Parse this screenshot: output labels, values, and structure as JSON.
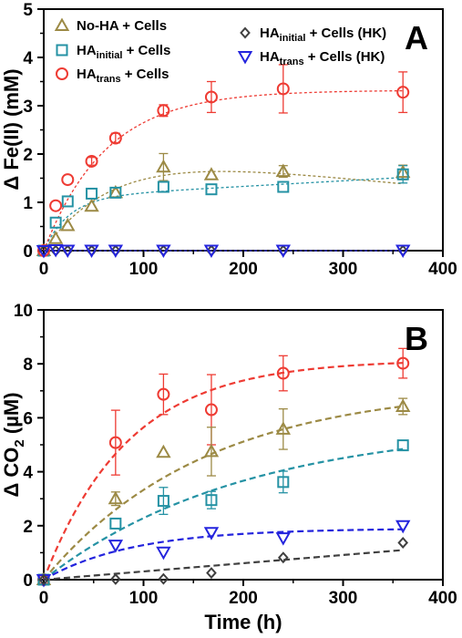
{
  "colors": {
    "noha": "#9c8a45",
    "hainit": "#2592a4",
    "hatrans": "#ee3b33",
    "hk_init": "#404040",
    "hk_trans": "#2424dd"
  },
  "chart_data": [
    {
      "type": "scatter",
      "panel_label": "A",
      "ylabel": "Δ Fe(II) (mM)",
      "xlabel": "",
      "xlim": [
        0,
        400
      ],
      "ylim": [
        0,
        5
      ],
      "xticks": [
        "0",
        "100",
        "200",
        "300",
        "400"
      ],
      "yticks": [
        "0",
        "1",
        "2",
        "3",
        "4",
        "5"
      ],
      "grid": false,
      "legend_placement": "top-left and top-center, inside plot",
      "series": [
        {
          "id": "noha",
          "legend_main": "No-HA + Cells",
          "legend_sub": "",
          "legend_tail": "",
          "marker": "triangle-up",
          "color": "#9c8a45",
          "x": [
            0,
            12,
            24,
            48,
            72,
            120,
            168,
            240,
            360
          ],
          "y": [
            0,
            0.25,
            0.52,
            0.92,
            1.2,
            1.73,
            1.57,
            1.64,
            1.62
          ],
          "err": [
            0,
            0,
            0,
            0,
            0,
            0.28,
            0,
            0.12,
            0.15
          ],
          "fit": {
            "kind": "peak",
            "A": 2.4,
            "k": 0.0125,
            "c": 0.0015
          }
        },
        {
          "id": "hainit",
          "legend_main": "HA",
          "legend_sub": "initial",
          "legend_tail": " + Cells",
          "marker": "square",
          "color": "#2592a4",
          "x": [
            0,
            12,
            24,
            48,
            72,
            120,
            168,
            240,
            360
          ],
          "y": [
            0,
            0.58,
            1.02,
            1.18,
            1.2,
            1.32,
            1.27,
            1.32,
            1.58
          ],
          "err": [
            0,
            0,
            0,
            0,
            0,
            0,
            0,
            0,
            0.18
          ],
          "fit": {
            "kind": "exp_linear",
            "A": 1.1,
            "k": 0.04,
            "b": 0.00115
          }
        },
        {
          "id": "hatrans",
          "legend_main": "HA",
          "legend_sub": "trans",
          "legend_tail": " + Cells",
          "marker": "circle",
          "color": "#ee3b33",
          "x": [
            0,
            12,
            24,
            48,
            72,
            120,
            168,
            240,
            360
          ],
          "y": [
            0,
            0.93,
            1.47,
            1.85,
            2.33,
            2.9,
            3.18,
            3.35,
            3.28
          ],
          "err": [
            0,
            0,
            0,
            0.08,
            0.1,
            0.12,
            0.32,
            0.5,
            0.42
          ],
          "fit": {
            "kind": "exp",
            "A": 3.32,
            "k": 0.016
          }
        },
        {
          "id": "hk_init",
          "legend_main": "HA",
          "legend_sub": "initial",
          "legend_tail": " + Cells (HK)",
          "marker": "diamond",
          "color": "#404040",
          "x": [
            0,
            12,
            24,
            48,
            72,
            120,
            168,
            240,
            360
          ],
          "y": [
            0,
            0,
            0,
            0,
            0,
            0,
            0,
            0,
            0
          ],
          "err": [
            0,
            0,
            0,
            0,
            0,
            0,
            0,
            0,
            0
          ],
          "fit": {
            "kind": "zero"
          }
        },
        {
          "id": "hk_trans",
          "legend_main": "HA",
          "legend_sub": "trans",
          "legend_tail": " + Cells (HK)",
          "marker": "triangle-down",
          "color": "#2424dd",
          "x": [
            0,
            12,
            24,
            48,
            72,
            120,
            168,
            240,
            360
          ],
          "y": [
            0,
            0.02,
            0.01,
            0.01,
            0.01,
            0.01,
            0.01,
            0.01,
            0.01
          ],
          "err": [
            0,
            0,
            0,
            0,
            0,
            0,
            0,
            0,
            0
          ],
          "fit": {
            "kind": "zero"
          }
        }
      ]
    },
    {
      "type": "scatter",
      "panel_label": "B",
      "ylabel_main": "Δ CO",
      "ylabel_sub": "2",
      "ylabel_tail": " (µM)",
      "xlabel": "Time (h)",
      "xlim": [
        0,
        400
      ],
      "ylim": [
        0,
        10
      ],
      "xticks": [
        "0",
        "100",
        "200",
        "300",
        "400"
      ],
      "yticks": [
        "0",
        "2",
        "4",
        "6",
        "8",
        "10"
      ],
      "grid": false,
      "series": [
        {
          "id": "hatrans",
          "marker": "circle",
          "color": "#ee3b33",
          "x": [
            0,
            72,
            120,
            168,
            240,
            360
          ],
          "y": [
            0,
            5.08,
            6.87,
            6.3,
            7.65,
            8.02
          ],
          "err": [
            0,
            1.2,
            0.75,
            1.3,
            0.65,
            0.55
          ],
          "fit": {
            "kind": "exp",
            "A": 8.15,
            "k": 0.0118
          }
        },
        {
          "id": "noha",
          "marker": "triangle-up",
          "color": "#9c8a45",
          "x": [
            0,
            72,
            120,
            168,
            240,
            360
          ],
          "y": [
            0,
            3.0,
            4.72,
            4.75,
            5.58,
            6.42
          ],
          "err": [
            0,
            0.25,
            0,
            0.9,
            0.75,
            0.3
          ],
          "fit": {
            "kind": "exp",
            "A": 7.2,
            "k": 0.0062
          }
        },
        {
          "id": "hainit",
          "marker": "square",
          "color": "#2592a4",
          "x": [
            0,
            72,
            120,
            168,
            240,
            360
          ],
          "y": [
            0,
            2.08,
            2.92,
            2.95,
            3.62,
            4.98
          ],
          "err": [
            0,
            0,
            0.5,
            0.32,
            0.4,
            0
          ],
          "fit": {
            "kind": "exp",
            "A": 5.8,
            "k": 0.005
          }
        },
        {
          "id": "hk_trans",
          "marker": "triangle-down",
          "color": "#2424dd",
          "x": [
            0,
            72,
            120,
            168,
            240,
            360
          ],
          "y": [
            0,
            1.28,
            1.02,
            1.75,
            1.55,
            2.0
          ],
          "err": [
            0,
            0,
            0,
            0,
            0,
            0
          ],
          "fit": {
            "kind": "exp",
            "A": 1.9,
            "k": 0.0112
          }
        },
        {
          "id": "hk_init",
          "marker": "diamond",
          "color": "#404040",
          "x": [
            0,
            72,
            120,
            168,
            240,
            360
          ],
          "y": [
            0,
            0.02,
            0.03,
            0.25,
            0.82,
            1.37
          ],
          "err": [
            0,
            0,
            0,
            0,
            0,
            0
          ],
          "fit": {
            "kind": "linear",
            "m": 0.00305
          }
        }
      ]
    }
  ]
}
